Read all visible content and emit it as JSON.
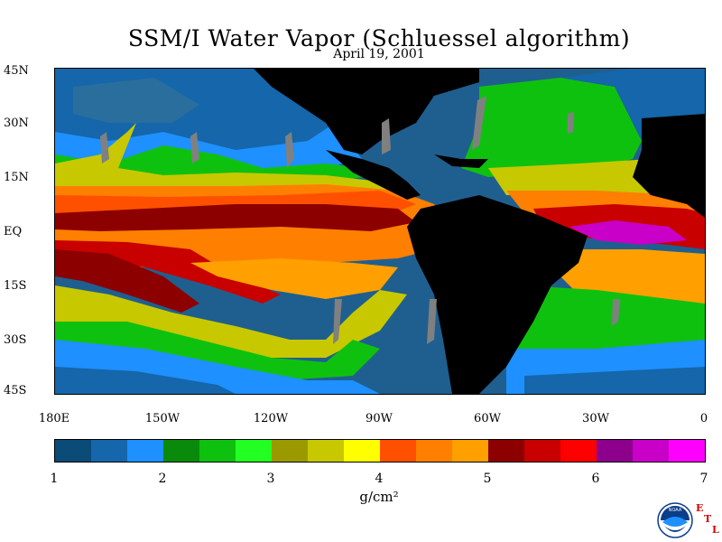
{
  "title": "SSM/I Water Vapor (Schluessel algorithm)",
  "date": "April 19, 2001",
  "lat_labels": [
    "45N",
    "30N",
    "15N",
    "EQ",
    "15S",
    "30S",
    "45S"
  ],
  "lon_labels": [
    "180E",
    "150W",
    "120W",
    "90W",
    "60W",
    "30W",
    "0"
  ],
  "colorbar": {
    "unit": "g/cm²",
    "tick_labels": [
      "1",
      "2",
      "3",
      "4",
      "5",
      "6",
      "7"
    ],
    "colors": [
      "#0a4b78",
      "#1566aa",
      "#1e90ff",
      "#0a8a0a",
      "#0fc10f",
      "#23ff23",
      "#9a9a00",
      "#c8c800",
      "#ffff00",
      "#ff5000",
      "#ff7f00",
      "#ffa000",
      "#8c0000",
      "#c80000",
      "#ff0000",
      "#8c008c",
      "#c800c8",
      "#ff00ff"
    ]
  },
  "chart_data": {
    "type": "heatmap",
    "title": "SSM/I Water Vapor (Schluessel algorithm)",
    "subtitle": "April 19, 2001",
    "xlabel": "",
    "ylabel": "",
    "x_ticks": [
      "180E",
      "150W",
      "120W",
      "90W",
      "60W",
      "30W",
      "0"
    ],
    "y_ticks": [
      "45N",
      "30N",
      "15N",
      "EQ",
      "15S",
      "30S",
      "45S"
    ],
    "xlim_deg_lon": [
      -180,
      0
    ],
    "ylim_deg_lat": [
      -45,
      45
    ],
    "colorbar_range": [
      1,
      7
    ],
    "colorbar_unit": "g/cm²",
    "land_color": "#000000",
    "missing_data_color": "#808080"
  },
  "logo": {
    "name": "noaa-logo-icon",
    "text": "NOAA",
    "etl": [
      "E",
      "T",
      "L"
    ]
  }
}
